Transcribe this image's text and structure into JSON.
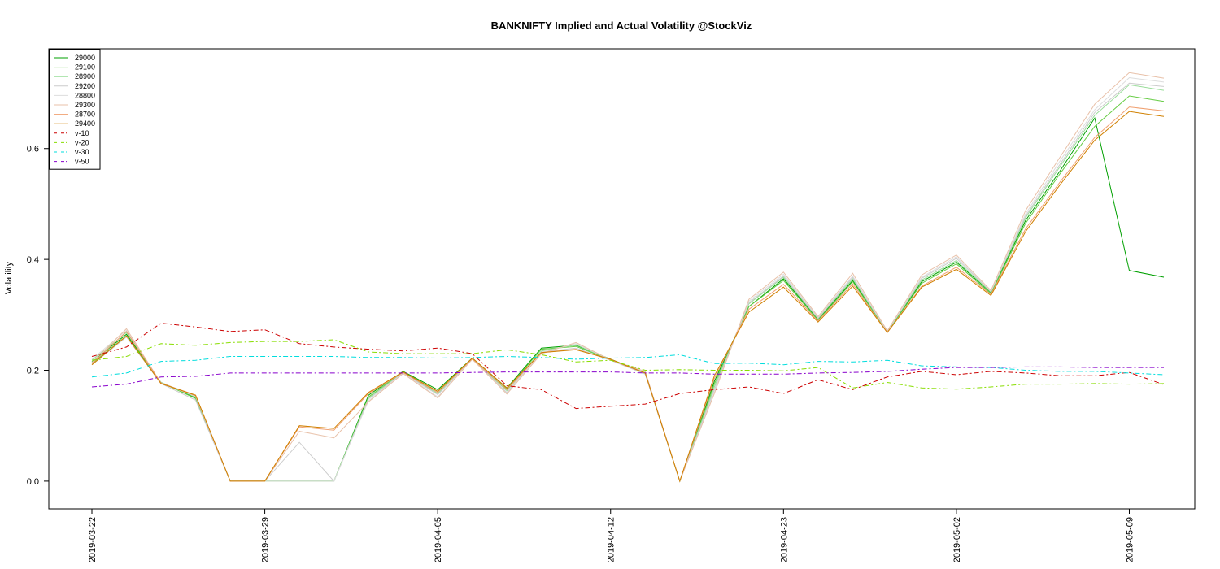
{
  "chart_data": {
    "type": "line",
    "title": "BANKNIFTY Implied and Actual Volatility @StockViz",
    "xlabel": "",
    "ylabel": "Volatility",
    "ylim": [
      -0.05,
      0.78
    ],
    "y_ticks": [
      "0.0",
      "0.2",
      "0.4",
      "0.6"
    ],
    "y_tick_values": [
      0,
      0.2,
      0.4,
      0.6
    ],
    "x": [
      "2019-03-22",
      "2019-03-25",
      "2019-03-26",
      "2019-03-27",
      "2019-03-28",
      "2019-03-29",
      "2019-04-01",
      "2019-04-02",
      "2019-04-03",
      "2019-04-04",
      "2019-04-05",
      "2019-04-08",
      "2019-04-09",
      "2019-04-10",
      "2019-04-11",
      "2019-04-12",
      "2019-04-15",
      "2019-04-16",
      "2019-04-18",
      "2019-04-22",
      "2019-04-23",
      "2019-04-24",
      "2019-04-25",
      "2019-04-26",
      "2019-04-30",
      "2019-05-02",
      "2019-05-03",
      "2019-05-06",
      "2019-05-07",
      "2019-05-08",
      "2019-05-09",
      "2019-05-10"
    ],
    "x_ticks": [
      "2019-03-22",
      "2019-03-29",
      "2019-04-05",
      "2019-04-12",
      "2019-04-23",
      "2019-05-02",
      "2019-05-09"
    ],
    "x_tick_index": [
      0,
      5,
      10,
      15,
      20,
      25,
      30
    ],
    "legend_position": "top-left",
    "series": [
      {
        "name": "29000",
        "color": "#00a000",
        "dash": "",
        "values": [
          0.215,
          0.265,
          0.178,
          0.15,
          0.0,
          0.0,
          0.0,
          0.0,
          0.155,
          0.198,
          0.165,
          0.222,
          0.168,
          0.24,
          0.245,
          0.22,
          0.195,
          0.0,
          0.18,
          0.315,
          0.365,
          0.292,
          0.362,
          0.27,
          0.36,
          0.395,
          0.34,
          0.47,
          0.56,
          0.655,
          0.38,
          0.368
        ]
      },
      {
        "name": "29100",
        "color": "#66cc44",
        "dash": "",
        "values": [
          0.212,
          0.262,
          0.178,
          0.149,
          0.0,
          0.0,
          0.0,
          0.0,
          0.152,
          0.197,
          0.162,
          0.221,
          0.166,
          0.238,
          0.243,
          0.219,
          0.194,
          0.0,
          0.175,
          0.315,
          0.362,
          0.29,
          0.36,
          0.269,
          0.357,
          0.392,
          0.338,
          0.465,
          0.555,
          0.64,
          0.695,
          0.685
        ]
      },
      {
        "name": "28900",
        "color": "#99dd99",
        "dash": "",
        "values": [
          0.218,
          0.268,
          0.178,
          0.152,
          0.0,
          0.0,
          0.0,
          0.0,
          0.15,
          0.196,
          0.158,
          0.22,
          0.163,
          0.235,
          0.246,
          0.219,
          0.196,
          0.0,
          0.17,
          0.32,
          0.368,
          0.293,
          0.365,
          0.27,
          0.363,
          0.398,
          0.341,
          0.475,
          0.568,
          0.66,
          0.715,
          0.705
        ]
      },
      {
        "name": "29200",
        "color": "#cccccc",
        "dash": "",
        "values": [
          0.21,
          0.26,
          0.176,
          0.146,
          0.0,
          0.0,
          0.07,
          0.0,
          0.148,
          0.195,
          0.156,
          0.22,
          0.16,
          0.233,
          0.24,
          0.218,
          0.193,
          0.0,
          0.165,
          0.322,
          0.37,
          0.294,
          0.368,
          0.27,
          0.366,
          0.402,
          0.342,
          0.478,
          0.572,
          0.665,
          0.718,
          0.712
        ]
      },
      {
        "name": "28800",
        "color": "#dddddd",
        "dash": "",
        "values": [
          0.22,
          0.272,
          0.177,
          0.153,
          0.0,
          0.0,
          0.0,
          0.0,
          0.145,
          0.195,
          0.152,
          0.22,
          0.158,
          0.232,
          0.248,
          0.219,
          0.197,
          0.0,
          0.16,
          0.325,
          0.373,
          0.296,
          0.37,
          0.271,
          0.368,
          0.405,
          0.343,
          0.482,
          0.578,
          0.67,
          0.728,
          0.72
        ]
      },
      {
        "name": "29300",
        "color": "#e8c0a8",
        "dash": "",
        "values": [
          0.214,
          0.275,
          0.177,
          0.155,
          0.0,
          0.0,
          0.09,
          0.078,
          0.143,
          0.194,
          0.15,
          0.22,
          0.157,
          0.23,
          0.25,
          0.219,
          0.198,
          0.0,
          0.158,
          0.328,
          0.377,
          0.297,
          0.375,
          0.271,
          0.372,
          0.408,
          0.344,
          0.488,
          0.585,
          0.68,
          0.737,
          0.727
        ]
      },
      {
        "name": "28700",
        "color": "#f0a070",
        "dash": "",
        "values": [
          0.212,
          0.27,
          0.177,
          0.154,
          0.0,
          0.0,
          0.098,
          0.092,
          0.158,
          0.196,
          0.16,
          0.221,
          0.165,
          0.232,
          0.238,
          0.219,
          0.195,
          0.0,
          0.185,
          0.31,
          0.355,
          0.289,
          0.356,
          0.268,
          0.352,
          0.386,
          0.337,
          0.455,
          0.54,
          0.62,
          0.675,
          0.668
        ]
      },
      {
        "name": "29400",
        "color": "#d08000",
        "dash": "",
        "values": [
          0.21,
          0.262,
          0.176,
          0.155,
          0.0,
          0.0,
          0.1,
          0.095,
          0.16,
          0.197,
          0.162,
          0.222,
          0.168,
          0.232,
          0.237,
          0.22,
          0.195,
          0.0,
          0.19,
          0.305,
          0.35,
          0.287,
          0.352,
          0.268,
          0.35,
          0.382,
          0.335,
          0.45,
          0.535,
          0.615,
          0.667,
          0.658
        ]
      },
      {
        "name": "v-10",
        "color": "#cc0000",
        "dash": "6,3,2,3",
        "values": [
          0.225,
          0.242,
          0.285,
          0.278,
          0.27,
          0.273,
          0.248,
          0.242,
          0.238,
          0.235,
          0.24,
          0.23,
          0.172,
          0.165,
          0.131,
          0.135,
          0.139,
          0.158,
          0.165,
          0.17,
          0.158,
          0.183,
          0.165,
          0.188,
          0.198,
          0.192,
          0.198,
          0.195,
          0.19,
          0.19,
          0.196,
          0.174
        ]
      },
      {
        "name": "v-20",
        "color": "#88dd00",
        "dash": "6,3,2,3",
        "values": [
          0.218,
          0.225,
          0.248,
          0.245,
          0.25,
          0.252,
          0.252,
          0.255,
          0.233,
          0.23,
          0.23,
          0.23,
          0.237,
          0.228,
          0.215,
          0.218,
          0.2,
          0.201,
          0.2,
          0.2,
          0.199,
          0.205,
          0.168,
          0.178,
          0.168,
          0.166,
          0.17,
          0.175,
          0.175,
          0.176,
          0.175,
          0.176
        ]
      },
      {
        "name": "v-30",
        "color": "#00dddd",
        "dash": "6,3,2,3",
        "values": [
          0.188,
          0.195,
          0.216,
          0.218,
          0.225,
          0.225,
          0.225,
          0.225,
          0.223,
          0.223,
          0.222,
          0.223,
          0.225,
          0.223,
          0.22,
          0.222,
          0.223,
          0.228,
          0.212,
          0.213,
          0.21,
          0.216,
          0.215,
          0.218,
          0.208,
          0.206,
          0.205,
          0.2,
          0.198,
          0.198,
          0.195,
          0.192
        ]
      },
      {
        "name": "v-50",
        "color": "#8800cc",
        "dash": "6,3,2,3",
        "values": [
          0.17,
          0.175,
          0.188,
          0.189,
          0.195,
          0.195,
          0.195,
          0.195,
          0.195,
          0.195,
          0.195,
          0.196,
          0.197,
          0.197,
          0.197,
          0.197,
          0.195,
          0.195,
          0.193,
          0.193,
          0.193,
          0.195,
          0.196,
          0.198,
          0.202,
          0.205,
          0.205,
          0.206,
          0.206,
          0.205,
          0.205,
          0.205
        ]
      }
    ]
  }
}
